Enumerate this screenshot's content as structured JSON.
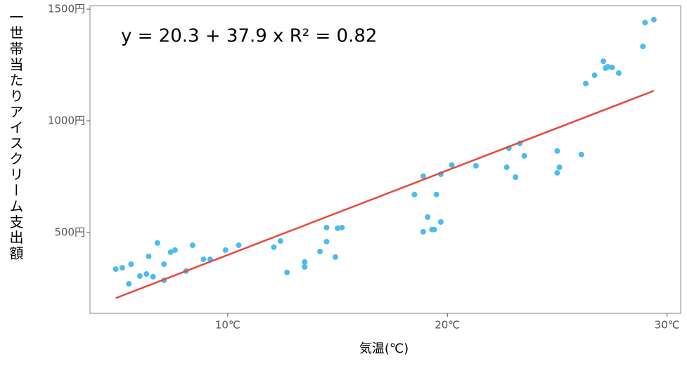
{
  "chart_data": {
    "type": "scatter",
    "annotation": "y = 20.3 + 37.9 x   R² = 0.82",
    "xlabel": "気温(℃)",
    "ylabel": "一世帯当たりアイスクリーム支出額",
    "xlim": [
      3.73,
      30.62
    ],
    "ylim": [
      138,
      1516
    ],
    "xticks": [
      {
        "value": 10,
        "label": "10℃"
      },
      {
        "value": 20,
        "label": "20℃"
      },
      {
        "value": 30,
        "label": "30℃"
      }
    ],
    "yticks": [
      {
        "value": 500,
        "label": "500円"
      },
      {
        "value": 1000,
        "label": "1000円"
      },
      {
        "value": 1500,
        "label": "1500円"
      }
    ],
    "fit": {
      "intercept": 20.3,
      "slope": 37.9,
      "color": "#e8473b"
    },
    "color": "#4dbaf0",
    "x": [
      4.9,
      5.2,
      5.6,
      5.5,
      6.0,
      6.3,
      6.4,
      6.6,
      6.8,
      7.1,
      7.1,
      7.4,
      7.6,
      8.1,
      8.4,
      8.9,
      9.2,
      9.9,
      10.5,
      12.1,
      12.4,
      12.7,
      13.5,
      13.5,
      14.2,
      14.5,
      14.5,
      14.9,
      15.0,
      15.2,
      18.5,
      18.9,
      18.9,
      19.1,
      19.3,
      19.4,
      19.5,
      19.7,
      19.7,
      20.2,
      21.3,
      22.7,
      22.8,
      23.1,
      23.3,
      23.5,
      25.0,
      25.0,
      25.1,
      26.1,
      26.3,
      26.7,
      27.1,
      27.2,
      27.3,
      27.5,
      27.8,
      28.9,
      29.0,
      29.4
    ],
    "values": [
      336,
      342,
      358,
      270,
      305,
      314,
      393,
      302,
      453,
      358,
      286,
      412,
      421,
      327,
      443,
      380,
      380,
      421,
      443,
      434,
      462,
      321,
      368,
      346,
      415,
      459,
      522,
      390,
      519,
      522,
      670,
      503,
      752,
      569,
      513,
      513,
      670,
      547,
      761,
      802,
      799,
      792,
      877,
      748,
      899,
      843,
      865,
      767,
      792,
      849,
      1167,
      1204,
      1267,
      1236,
      1242,
      1239,
      1214,
      1333,
      1440,
      1453
    ]
  }
}
